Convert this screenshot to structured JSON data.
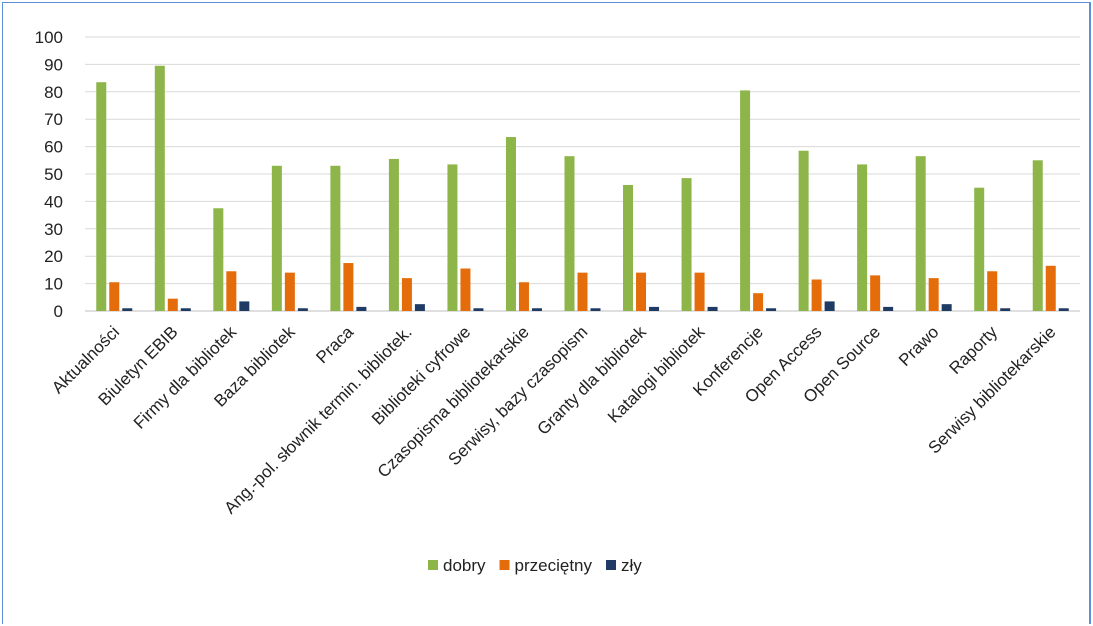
{
  "chart_data": {
    "type": "bar",
    "title": "",
    "xlabel": "",
    "ylabel": "",
    "ylim": [
      0,
      100
    ],
    "yticks": [
      0,
      10,
      20,
      30,
      40,
      50,
      60,
      70,
      80,
      90,
      100
    ],
    "grid": true,
    "legend_position": "bottom",
    "categories": [
      "Aktualności",
      "Biuletyn EBIB",
      "Firmy dla bibliotek",
      "Baza bibliotek",
      "Praca",
      "Ang.-pol. słownik termin. bibliotek.",
      "Biblioteki cyfrowe",
      "Czasopisma bibliotekarskie",
      "Serwisy, bazy czasopism",
      "Granty dla bibliotek",
      "Katalogi bibliotek",
      "Konferencje",
      "Open Access",
      "Open Source",
      "Prawo",
      "Raporty",
      "Serwisy bibliotekarskie"
    ],
    "series": [
      {
        "name": "dobry",
        "color": "#8db54a",
        "values": [
          83.5,
          89.5,
          37.5,
          53,
          53,
          55.5,
          53.5,
          63.5,
          56.5,
          46,
          48.5,
          80.5,
          58.5,
          53.5,
          56.5,
          45,
          55
        ]
      },
      {
        "name": "przeciętny",
        "color": "#e46c0a",
        "values": [
          10.5,
          4.5,
          14.5,
          14,
          17.5,
          12,
          15.5,
          10.5,
          14,
          14,
          14,
          6.5,
          11.5,
          13,
          12,
          14.5,
          16.5
        ]
      },
      {
        "name": "zły",
        "color": "#1f3b64",
        "values": [
          1,
          1,
          3.5,
          1,
          1.5,
          2.5,
          1,
          1,
          1,
          1.5,
          1.5,
          1,
          3.5,
          1.5,
          2.5,
          1,
          1
        ]
      }
    ]
  }
}
